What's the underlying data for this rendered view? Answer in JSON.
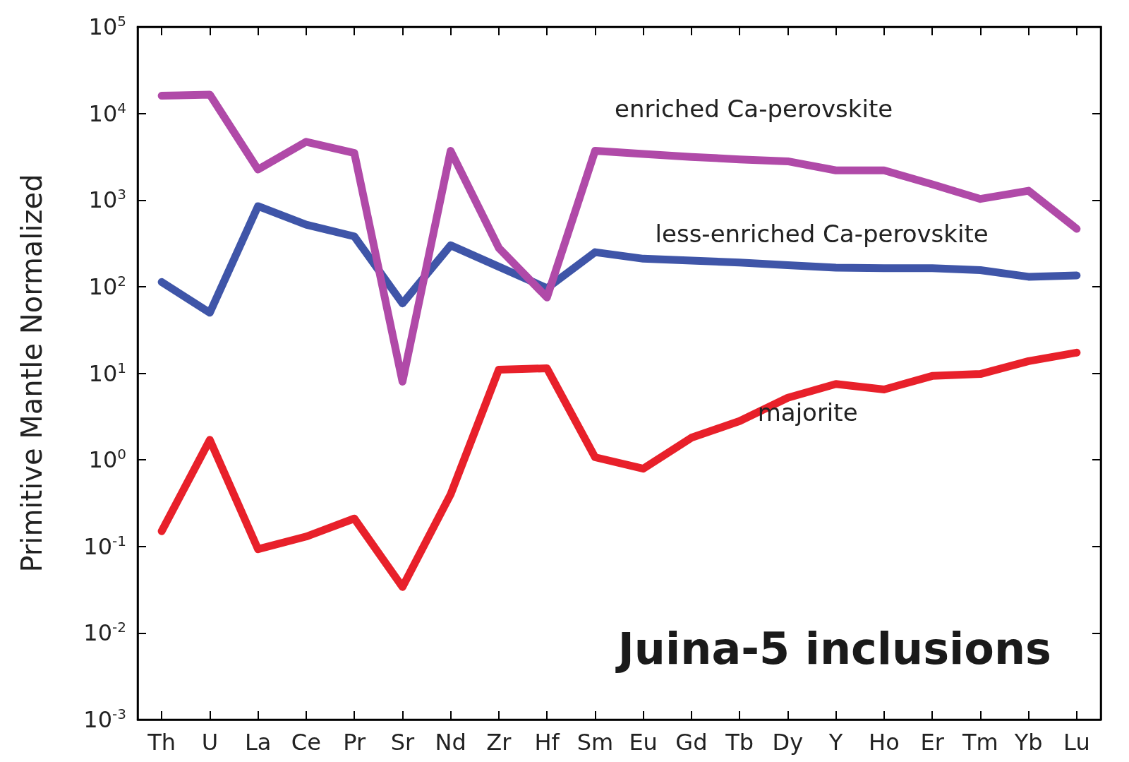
{
  "chart_data": {
    "type": "line",
    "title": "Juina-5 inclusions",
    "ylabel": "Primitive Mantle Normalized",
    "categories": [
      "Th",
      "U",
      "La",
      "Ce",
      "Pr",
      "Sr",
      "Nd",
      "Zr",
      "Hf",
      "Sm",
      "Eu",
      "Gd",
      "Tb",
      "Dy",
      "Y",
      "Ho",
      "Er",
      "Tm",
      "Yb",
      "Lu"
    ],
    "series": [
      {
        "name": "enriched Ca-perovskite",
        "color": "#b04aa8",
        "values": [
          16000,
          16500,
          2250,
          4700,
          3500,
          8,
          3700,
          280,
          75,
          3700,
          3400,
          3150,
          2950,
          2800,
          2200,
          2200,
          1520,
          1030,
          1280,
          465
        ]
      },
      {
        "name": "less-enriched Ca-perovskite",
        "color": "#3f55a8",
        "values": [
          113,
          50,
          850,
          520,
          380,
          64,
          300,
          170,
          96,
          250,
          210,
          200,
          190,
          177,
          166,
          163,
          163,
          155,
          130,
          135
        ]
      },
      {
        "name": "majorite",
        "color": "#e8202a",
        "values": [
          0.15,
          1.7,
          0.093,
          0.13,
          0.21,
          0.034,
          0.4,
          11,
          11.4,
          1.07,
          0.79,
          1.8,
          2.8,
          5.2,
          7.5,
          6.5,
          9.3,
          9.8,
          13.8,
          17.3
        ]
      }
    ],
    "log": "y",
    "ylim": [
      0.001,
      100000
    ],
    "yticks": [
      {
        "value": 0.001,
        "label": "10$^{-3}$"
      },
      {
        "value": 0.01,
        "label": "10$^{-2}$"
      },
      {
        "value": 0.1,
        "label": "10$^{-1}$"
      },
      {
        "value": 1,
        "label": "10$^{0}$"
      },
      {
        "value": 10,
        "label": "10$^{1}$"
      },
      {
        "value": 100,
        "label": "10$^{2}$"
      },
      {
        "value": 1000,
        "label": "10$^{3}$"
      },
      {
        "value": 10000,
        "label": "10$^{4}$"
      },
      {
        "value": 100000,
        "label": "10$^{5}$"
      }
    ],
    "grid": false,
    "legend": false,
    "marker": "none",
    "line_style": "solid"
  }
}
